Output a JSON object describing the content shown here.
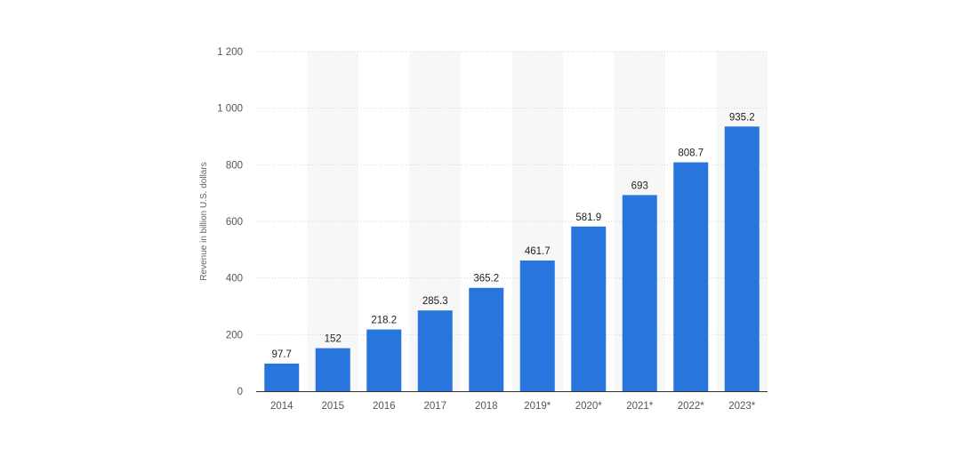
{
  "chart_data": {
    "type": "bar",
    "categories": [
      "2014",
      "2015",
      "2016",
      "2017",
      "2018",
      "2019*",
      "2020*",
      "2021*",
      "2022*",
      "2023*"
    ],
    "values": [
      97.7,
      152,
      218.2,
      285.3,
      365.2,
      461.7,
      581.9,
      693,
      808.7,
      935.2
    ],
    "value_labels": [
      "97.7",
      "152",
      "218.2",
      "285.3",
      "365.2",
      "461.7",
      "581.9",
      "693",
      "808.7",
      "935.2"
    ],
    "title": "",
    "xlabel": "",
    "ylabel": "Revenue in billion U.S. dollars",
    "ylim": [
      0,
      1200
    ],
    "yticks": [
      0,
      200,
      400,
      600,
      800,
      1000,
      1200
    ],
    "ytick_labels": [
      "0",
      "200",
      "400",
      "600",
      "800",
      "1 000",
      "1 200"
    ],
    "grid": true,
    "legend": "none",
    "colors": {
      "bar": "#2876dd",
      "band": "#f7f7f7",
      "grid": "#d6d6d6"
    }
  }
}
